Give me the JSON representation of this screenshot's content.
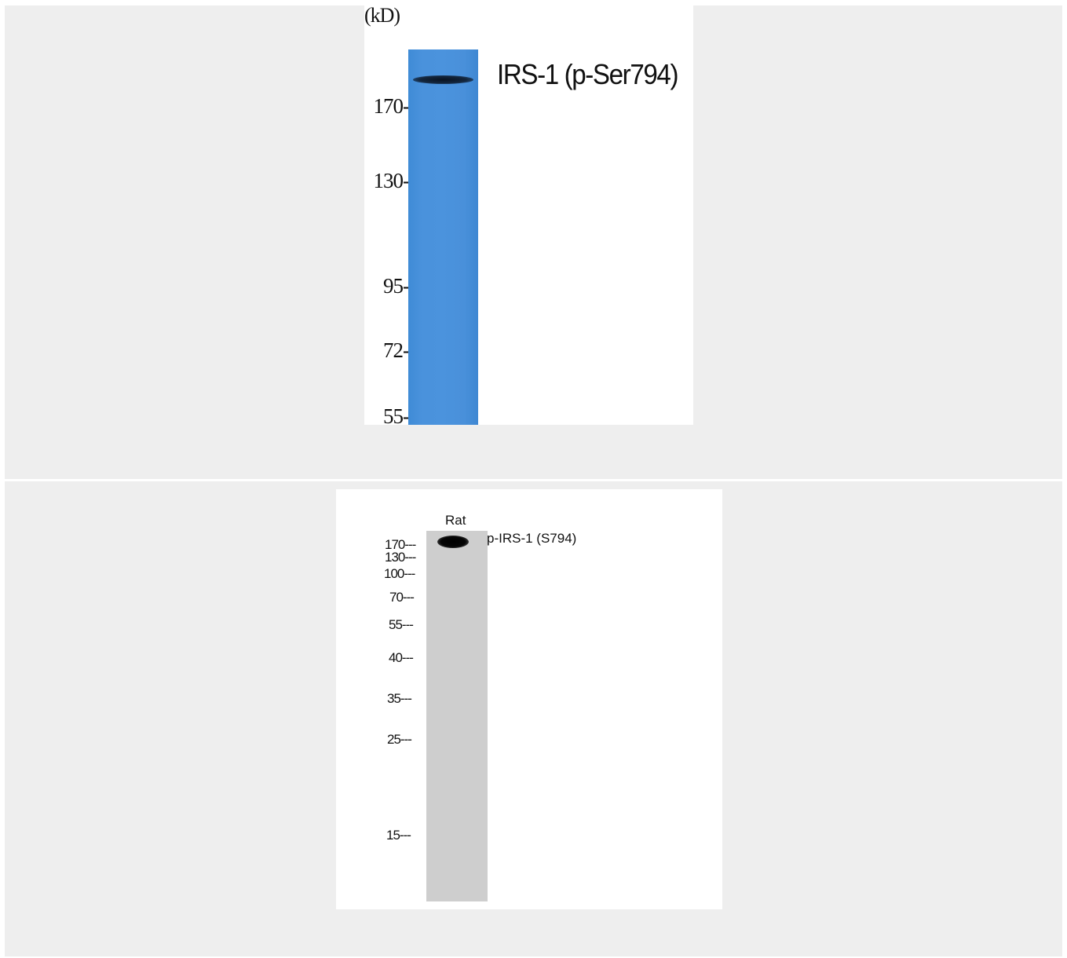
{
  "top_panel": {
    "unit_label": "(kD)",
    "target_label": "IRS-1 (p-Ser794)",
    "markers": [
      "170-",
      "130-",
      "95-",
      "72-",
      "55-"
    ],
    "lane_color": "#4a92dc",
    "band_color": "#0e1b2c"
  },
  "bottom_panel": {
    "sample_label": "Rat",
    "target_label": "p-IRS-1 (S794)",
    "markers": [
      "170---",
      "130---",
      "100---",
      "70---",
      "55---",
      "40---",
      "35---",
      "25---",
      "15---"
    ],
    "lane_color": "#cecece",
    "band_color": "#000000"
  }
}
